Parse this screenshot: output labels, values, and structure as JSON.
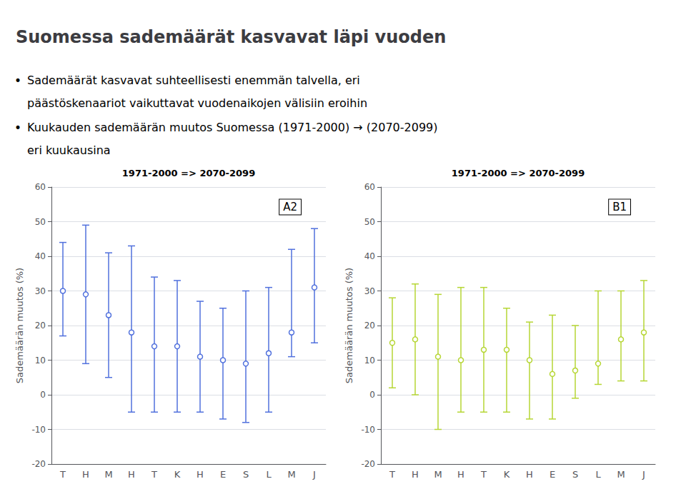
{
  "title": "Suomessa sademäärät kasvavat läpi vuoden",
  "bullet_mark": "•",
  "bullets": [
    [
      "Sademäärät kasvavat suhteellisesti enemmän talvella, eri",
      "päästöskenaariot vaikuttavat vuodenaikojen välisiin eroihin"
    ],
    [
      "Kuukauden sademäärän muutos Suomessa (1971-2000) → (2070-2099)",
      "eri kuukausina"
    ]
  ],
  "chart_data": [
    {
      "type": "scatter",
      "subtitle": "1971-2000 => 2070-2099",
      "annotations": [
        "A2"
      ],
      "categories": [
        "T",
        "H",
        "M",
        "H",
        "T",
        "K",
        "H",
        "E",
        "S",
        "L",
        "M",
        "J"
      ],
      "ylabel": "Sademäärän muutos (%)",
      "values": [
        30,
        29,
        23,
        18,
        14,
        14,
        11,
        10,
        9,
        12,
        18,
        31
      ],
      "error_upper": [
        44,
        49,
        41,
        43,
        34,
        33,
        27,
        25,
        30,
        31,
        42,
        48
      ],
      "error_lower": [
        17,
        9,
        5,
        -5,
        -5,
        -5,
        -5,
        -7,
        -8,
        -5,
        11,
        15
      ],
      "ylim": [
        -20,
        60
      ],
      "yticks": [
        -20,
        -10,
        0,
        10,
        20,
        30,
        40,
        50,
        60
      ],
      "grid": true
    },
    {
      "type": "scatter",
      "subtitle": "1971-2000 => 2070-2099",
      "annotations": [
        "B1"
      ],
      "categories": [
        "T",
        "H",
        "M",
        "H",
        "T",
        "K",
        "H",
        "E",
        "S",
        "L",
        "M",
        "J"
      ],
      "ylabel": "Sademäärän muutos (%)",
      "values": [
        15,
        16,
        11,
        10,
        13,
        13,
        10,
        6,
        7,
        9,
        16,
        18
      ],
      "error_upper": [
        28,
        32,
        29,
        31,
        31,
        25,
        21,
        23,
        20,
        30,
        30,
        33
      ],
      "error_lower": [
        2,
        0,
        -10,
        -5,
        -5,
        -5,
        -7,
        -7,
        -1,
        3,
        4,
        4
      ],
      "ylim": [
        -20,
        60
      ],
      "yticks": [
        -20,
        -10,
        0,
        10,
        20,
        30,
        40,
        50,
        60
      ],
      "grid": true
    }
  ]
}
